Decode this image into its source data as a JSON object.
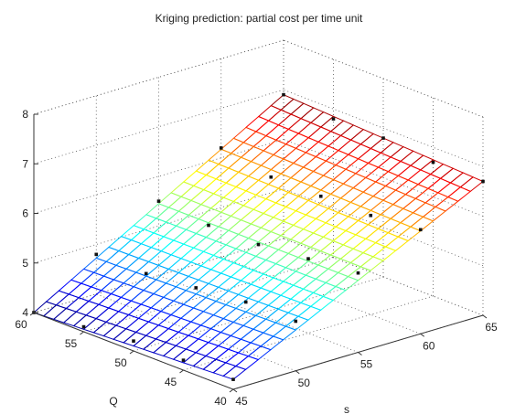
{
  "chart_data": {
    "type": "surface",
    "title": "Kriging prediction: partial cost per time unit",
    "xlabel": "s",
    "ylabel": "Q",
    "zlabel": "",
    "x_ticks": [
      "45",
      "50",
      "55",
      "60",
      "65"
    ],
    "y_ticks": [
      "40",
      "45",
      "50",
      "55",
      "60"
    ],
    "z_ticks": [
      "4",
      "5",
      "6",
      "7",
      "8"
    ],
    "xlim": [
      45,
      65
    ],
    "ylim": [
      40,
      60
    ],
    "zlim": [
      4,
      8
    ],
    "grid": true,
    "colormap": "jet",
    "mesh_resolution": {
      "s": 21,
      "Q": 21
    },
    "surface_corners": [
      {
        "s": 45,
        "Q": 40,
        "z": 4.2
      },
      {
        "s": 45,
        "Q": 60,
        "z": 4.0
      },
      {
        "s": 65,
        "Q": 40,
        "z": 6.7
      },
      {
        "s": 65,
        "Q": 60,
        "z": 6.9
      }
    ],
    "design_points": [
      {
        "s": 45,
        "Q": 60,
        "z": 4.0
      },
      {
        "s": 50,
        "Q": 60,
        "z": 4.8
      },
      {
        "s": 55,
        "Q": 60,
        "z": 5.5
      },
      {
        "s": 60,
        "Q": 60,
        "z": 6.2
      },
      {
        "s": 65,
        "Q": 60,
        "z": 6.9
      },
      {
        "s": 45,
        "Q": 55,
        "z": 4.1
      },
      {
        "s": 50,
        "Q": 55,
        "z": 4.8
      },
      {
        "s": 55,
        "Q": 55,
        "z": 5.4
      },
      {
        "s": 60,
        "Q": 55,
        "z": 6.0
      },
      {
        "s": 65,
        "Q": 55,
        "z": 6.8
      },
      {
        "s": 45,
        "Q": 50,
        "z": 4.2
      },
      {
        "s": 50,
        "Q": 50,
        "z": 4.9
      },
      {
        "s": 55,
        "Q": 50,
        "z": 5.4
      },
      {
        "s": 60,
        "Q": 50,
        "z": 6.0
      },
      {
        "s": 65,
        "Q": 50,
        "z": 6.8
      },
      {
        "s": 45,
        "Q": 45,
        "z": 4.2
      },
      {
        "s": 50,
        "Q": 45,
        "z": 5.0
      },
      {
        "s": 55,
        "Q": 45,
        "z": 5.5
      },
      {
        "s": 60,
        "Q": 45,
        "z": 6.0
      },
      {
        "s": 65,
        "Q": 45,
        "z": 6.7
      },
      {
        "s": 45,
        "Q": 40,
        "z": 4.2
      },
      {
        "s": 50,
        "Q": 40,
        "z": 5.0
      },
      {
        "s": 55,
        "Q": 40,
        "z": 5.6
      },
      {
        "s": 60,
        "Q": 40,
        "z": 6.1
      },
      {
        "s": 65,
        "Q": 40,
        "z": 6.7
      }
    ]
  }
}
